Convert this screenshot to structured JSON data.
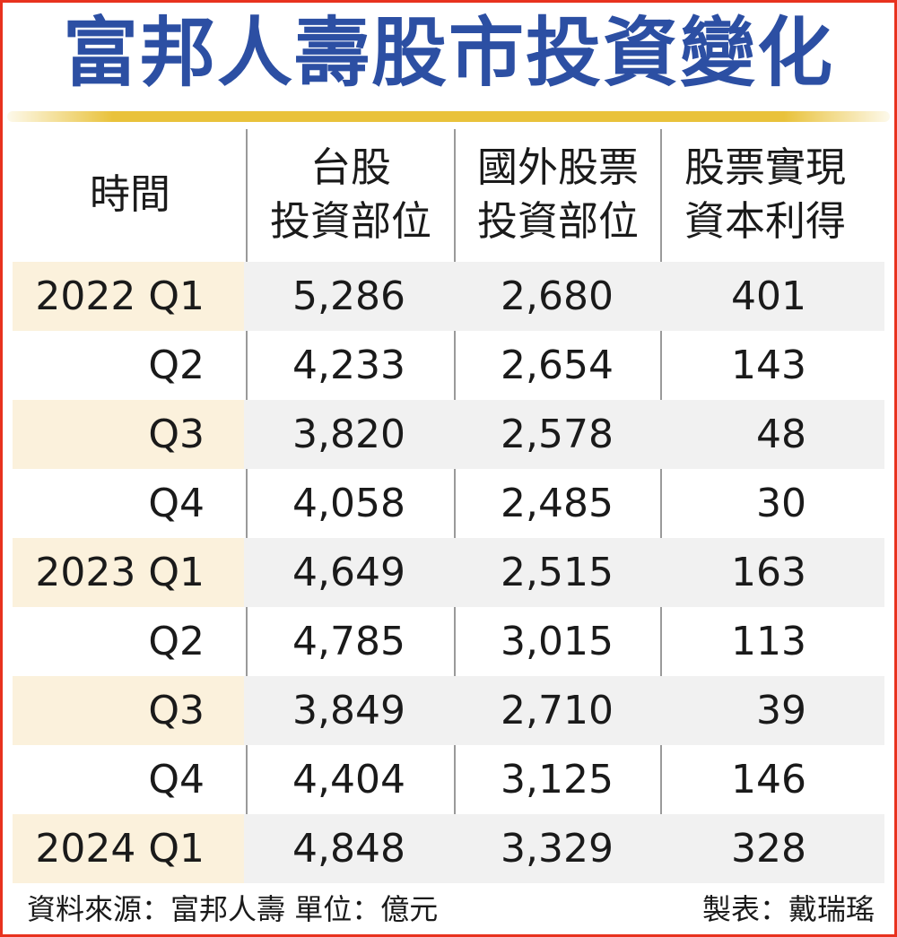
{
  "chart_data": {
    "type": "table",
    "title": "富邦人壽股市投資變化",
    "columns": [
      {
        "key": "time",
        "label_lines": [
          "時間"
        ]
      },
      {
        "key": "tw_stock",
        "label_lines": [
          "台股",
          "投資部位"
        ]
      },
      {
        "key": "foreign_stock",
        "label_lines": [
          "國外股票",
          "投資部位"
        ]
      },
      {
        "key": "capital_gain",
        "label_lines": [
          "股票實現",
          "資本利得"
        ]
      }
    ],
    "rows": [
      {
        "time": "2022 Q1",
        "tw_stock": "5,286",
        "foreign_stock": "2,680",
        "capital_gain": "401"
      },
      {
        "time": "Q2",
        "tw_stock": "4,233",
        "foreign_stock": "2,654",
        "capital_gain": "143"
      },
      {
        "time": "Q3",
        "tw_stock": "3,820",
        "foreign_stock": "2,578",
        "capital_gain": "48"
      },
      {
        "time": "Q4",
        "tw_stock": "4,058",
        "foreign_stock": "2,485",
        "capital_gain": "30"
      },
      {
        "time": "2023 Q1",
        "tw_stock": "4,649",
        "foreign_stock": "2,515",
        "capital_gain": "163"
      },
      {
        "time": "Q2",
        "tw_stock": "4,785",
        "foreign_stock": "3,015",
        "capital_gain": "113"
      },
      {
        "time": "Q3",
        "tw_stock": "3,849",
        "foreign_stock": "2,710",
        "capital_gain": "39"
      },
      {
        "time": "Q4",
        "tw_stock": "4,404",
        "foreign_stock": "3,125",
        "capital_gain": "146"
      },
      {
        "time": "2024 Q1",
        "tw_stock": "4,848",
        "foreign_stock": "3,329",
        "capital_gain": "328"
      }
    ],
    "source": "資料來源：富邦人壽",
    "unit": "單位：億元",
    "credit": "製表：戴瑞瑤"
  },
  "colors": {
    "title": "#2c4fa3",
    "border": "#e8321e",
    "gold_rule": "#e9c23b",
    "shade_time": "#fbf1dc",
    "shade_data": "#f1f1f1"
  }
}
